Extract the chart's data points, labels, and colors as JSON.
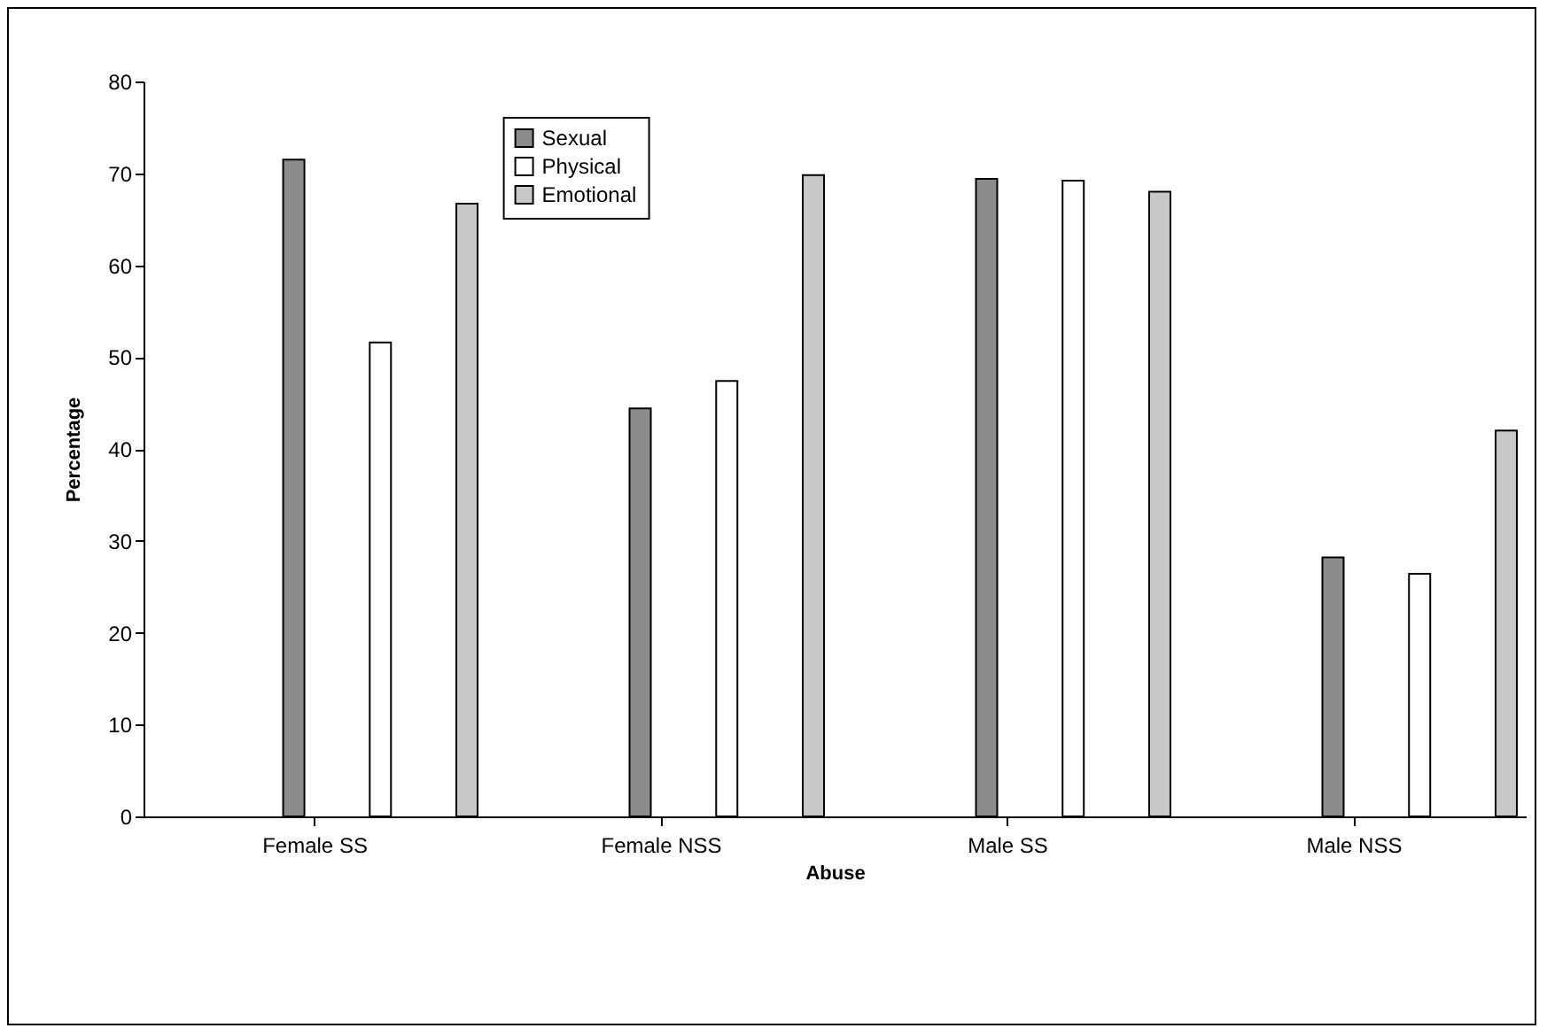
{
  "chart_data": {
    "type": "bar",
    "xlabel": "Abuse",
    "ylabel": "Percentage",
    "categories": [
      "Female SS",
      "Female NSS",
      "Male SS",
      "Male NSS"
    ],
    "series": [
      {
        "name": "Sexual",
        "color": "#8c8c8c",
        "values": [
          71.5,
          44.4,
          69.4,
          28.2
        ]
      },
      {
        "name": "Physical",
        "color": "#ffffff",
        "values": [
          51.6,
          47.4,
          69.2,
          26.4
        ]
      },
      {
        "name": "Emotional",
        "color": "#c8c8c8",
        "values": [
          66.7,
          69.8,
          68.0,
          42.0
        ]
      }
    ],
    "ylim": [
      0,
      80
    ],
    "yticks": [
      0,
      10,
      20,
      30,
      40,
      50,
      60,
      70,
      80
    ],
    "legend": "top left"
  }
}
